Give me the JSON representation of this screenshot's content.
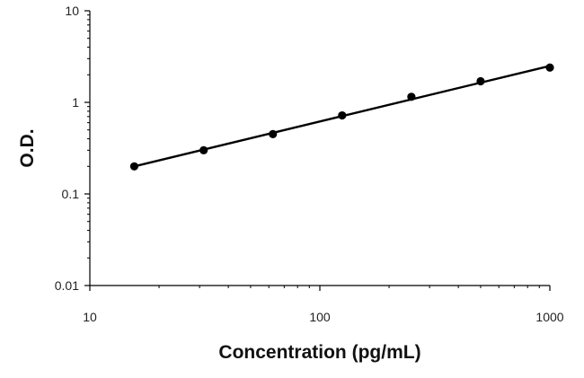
{
  "chart_data": {
    "type": "scatter",
    "title": "",
    "xlabel": "Concentration (pg/mL)",
    "ylabel": "O.D.",
    "xscale": "log",
    "yscale": "log",
    "xlim": [
      10,
      1000
    ],
    "ylim": [
      0.01,
      10
    ],
    "x_ticks": [
      "10",
      "100",
      "1000"
    ],
    "y_ticks": [
      "0.01",
      "0.1",
      "1",
      "10"
    ],
    "grid": false,
    "legend": "none",
    "series": [
      {
        "x": [
          15.6,
          31.25,
          62.5,
          125,
          250,
          500,
          1000
        ],
        "y": [
          0.2,
          0.3,
          0.45,
          0.72,
          1.15,
          1.7,
          2.4
        ]
      }
    ],
    "fit_line": {
      "x": [
        15.6,
        1000
      ],
      "y": [
        0.2,
        2.5
      ]
    },
    "colors": {
      "marker": "#000000",
      "line": "#000000",
      "axis": "#000000"
    }
  }
}
